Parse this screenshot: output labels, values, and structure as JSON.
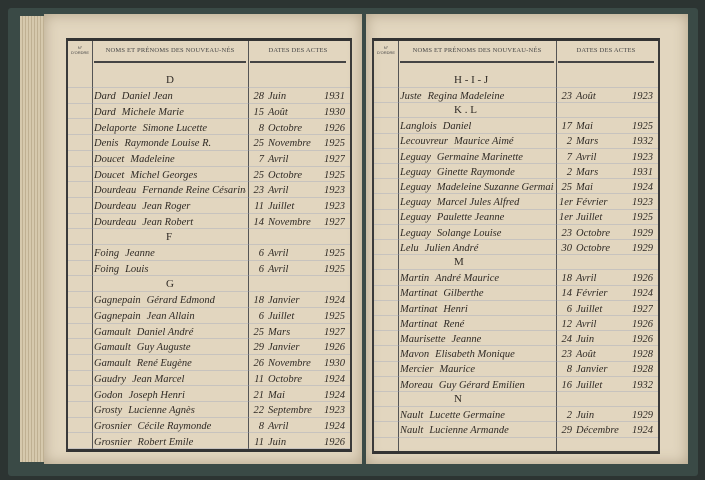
{
  "headers": {
    "no": "N° D'ORDRE",
    "names": "NOMS ET PRÉNOMS DES NOUVEAU-NÉS",
    "dates": "DATES DES ACTES"
  },
  "left_page": [
    {
      "heading": "D"
    },
    {
      "surname": "Dard",
      "given": "Daniel Jean",
      "day": "28",
      "month": "Juin",
      "year": "1931"
    },
    {
      "surname": "Dard",
      "given": "Michele Marie",
      "day": "15",
      "month": "Août",
      "year": "1930"
    },
    {
      "surname": "Delaporte",
      "given": "Simone Lucette",
      "day": "8",
      "month": "Octobre",
      "year": "1926"
    },
    {
      "surname": "Denis",
      "given": "Raymonde Louise R.",
      "day": "25",
      "month": "Novembre",
      "year": "1925"
    },
    {
      "surname": "Doucet",
      "given": "Madeleine",
      "day": "7",
      "month": "Avril",
      "year": "1927"
    },
    {
      "surname": "Doucet",
      "given": "Michel Georges",
      "day": "25",
      "month": "Octobre",
      "year": "1925"
    },
    {
      "surname": "Dourdeau",
      "given": "Fernande Reine Césarine",
      "day": "23",
      "month": "Avril",
      "year": "1923"
    },
    {
      "surname": "Dourdeau",
      "given": "Jean Roger",
      "day": "11",
      "month": "Juillet",
      "year": "1923"
    },
    {
      "surname": "Dourdeau",
      "given": "Jean Robert",
      "day": "14",
      "month": "Novembre",
      "year": "1927"
    },
    {
      "heading": "F"
    },
    {
      "surname": "Foing",
      "given": "Jeanne",
      "day": "6",
      "month": "Avril",
      "year": "1925"
    },
    {
      "surname": "Foing",
      "given": "Louis",
      "day": "6",
      "month": "Avril",
      "year": "1925"
    },
    {
      "heading": "G"
    },
    {
      "surname": "Gagnepain",
      "given": "Gérard Edmond",
      "day": "18",
      "month": "Janvier",
      "year": "1924"
    },
    {
      "surname": "Gagnepain",
      "given": "Jean Allain",
      "day": "6",
      "month": "Juillet",
      "year": "1925"
    },
    {
      "surname": "Gamault",
      "given": "Daniel André",
      "day": "25",
      "month": "Mars",
      "year": "1927"
    },
    {
      "surname": "Gamault",
      "given": "Guy Auguste",
      "day": "29",
      "month": "Janvier",
      "year": "1926"
    },
    {
      "surname": "Gamault",
      "given": "René Eugène",
      "day": "26",
      "month": "Novembre",
      "year": "1930"
    },
    {
      "surname": "Gaudry",
      "given": "Jean Marcel",
      "day": "11",
      "month": "Octobre",
      "year": "1924"
    },
    {
      "surname": "Godon",
      "given": "Joseph Henri",
      "day": "21",
      "month": "Mai",
      "year": "1924"
    },
    {
      "surname": "Grosty",
      "given": "Lucienne Agnès",
      "day": "22",
      "month": "Septembre",
      "year": "1923"
    },
    {
      "surname": "Grosnier",
      "given": "Cécile Raymonde",
      "day": "8",
      "month": "Avril",
      "year": "1924"
    },
    {
      "surname": "Grosnier",
      "given": "Robert Emile",
      "day": "11",
      "month": "Juin",
      "year": "1926"
    }
  ],
  "right_page": [
    {
      "heading": "H - I - J"
    },
    {
      "surname": "Juste",
      "given": "Regina Madeleine",
      "day": "23",
      "month": "Août",
      "year": "1923"
    },
    {
      "heading": "K . L"
    },
    {
      "surname": "Langlois",
      "given": "Daniel",
      "day": "17",
      "month": "Mai",
      "year": "1925"
    },
    {
      "surname": "Lecouvreur",
      "given": "Maurice Aimé",
      "day": "2",
      "month": "Mars",
      "year": "1932"
    },
    {
      "surname": "Leguay",
      "given": "Germaine Marinette",
      "day": "7",
      "month": "Avril",
      "year": "1923"
    },
    {
      "surname": "Leguay",
      "given": "Ginette Raymonde",
      "day": "2",
      "month": "Mars",
      "year": "1931"
    },
    {
      "surname": "Leguay",
      "given": "Madeleine Suzanne Germaine",
      "day": "25",
      "month": "Mai",
      "year": "1924"
    },
    {
      "surname": "Leguay",
      "given": "Marcel Jules Alfred",
      "day": "1er",
      "month": "Février",
      "year": "1923"
    },
    {
      "surname": "Leguay",
      "given": "Paulette Jeanne",
      "day": "1er",
      "month": "Juillet",
      "year": "1925"
    },
    {
      "surname": "Leguay",
      "given": "Solange Louise",
      "day": "23",
      "month": "Octobre",
      "year": "1929"
    },
    {
      "surname": "Lelu",
      "given": "Julien André",
      "day": "30",
      "month": "Octobre",
      "year": "1929"
    },
    {
      "heading": "M"
    },
    {
      "surname": "Martin",
      "given": "André Maurice",
      "day": "18",
      "month": "Avril",
      "year": "1926"
    },
    {
      "surname": "Martinat",
      "given": "Gilberthe",
      "day": "14",
      "month": "Février",
      "year": "1924"
    },
    {
      "surname": "Martinat",
      "given": "Henri",
      "day": "6",
      "month": "Juillet",
      "year": "1927"
    },
    {
      "surname": "Martinat",
      "given": "René",
      "day": "12",
      "month": "Avril",
      "year": "1926"
    },
    {
      "surname": "Maurisette",
      "given": "Jeanne",
      "day": "24",
      "month": "Juin",
      "year": "1926"
    },
    {
      "surname": "Mavon",
      "given": "Elisabeth Monique",
      "day": "23",
      "month": "Août",
      "year": "1928"
    },
    {
      "surname": "Mercier",
      "given": "Maurice",
      "day": "8",
      "month": "Janvier",
      "year": "1928"
    },
    {
      "surname": "Moreau",
      "given": "Guy Gérard Emilien",
      "day": "16",
      "month": "Juillet",
      "year": "1932"
    },
    {
      "heading": "N"
    },
    {
      "surname": "Nault",
      "given": "Lucette Germaine",
      "day": "2",
      "month": "Juin",
      "year": "1929"
    },
    {
      "surname": "Nault",
      "given": "Lucienne Armande",
      "day": "29",
      "month": "Décembre",
      "year": "1924"
    }
  ]
}
